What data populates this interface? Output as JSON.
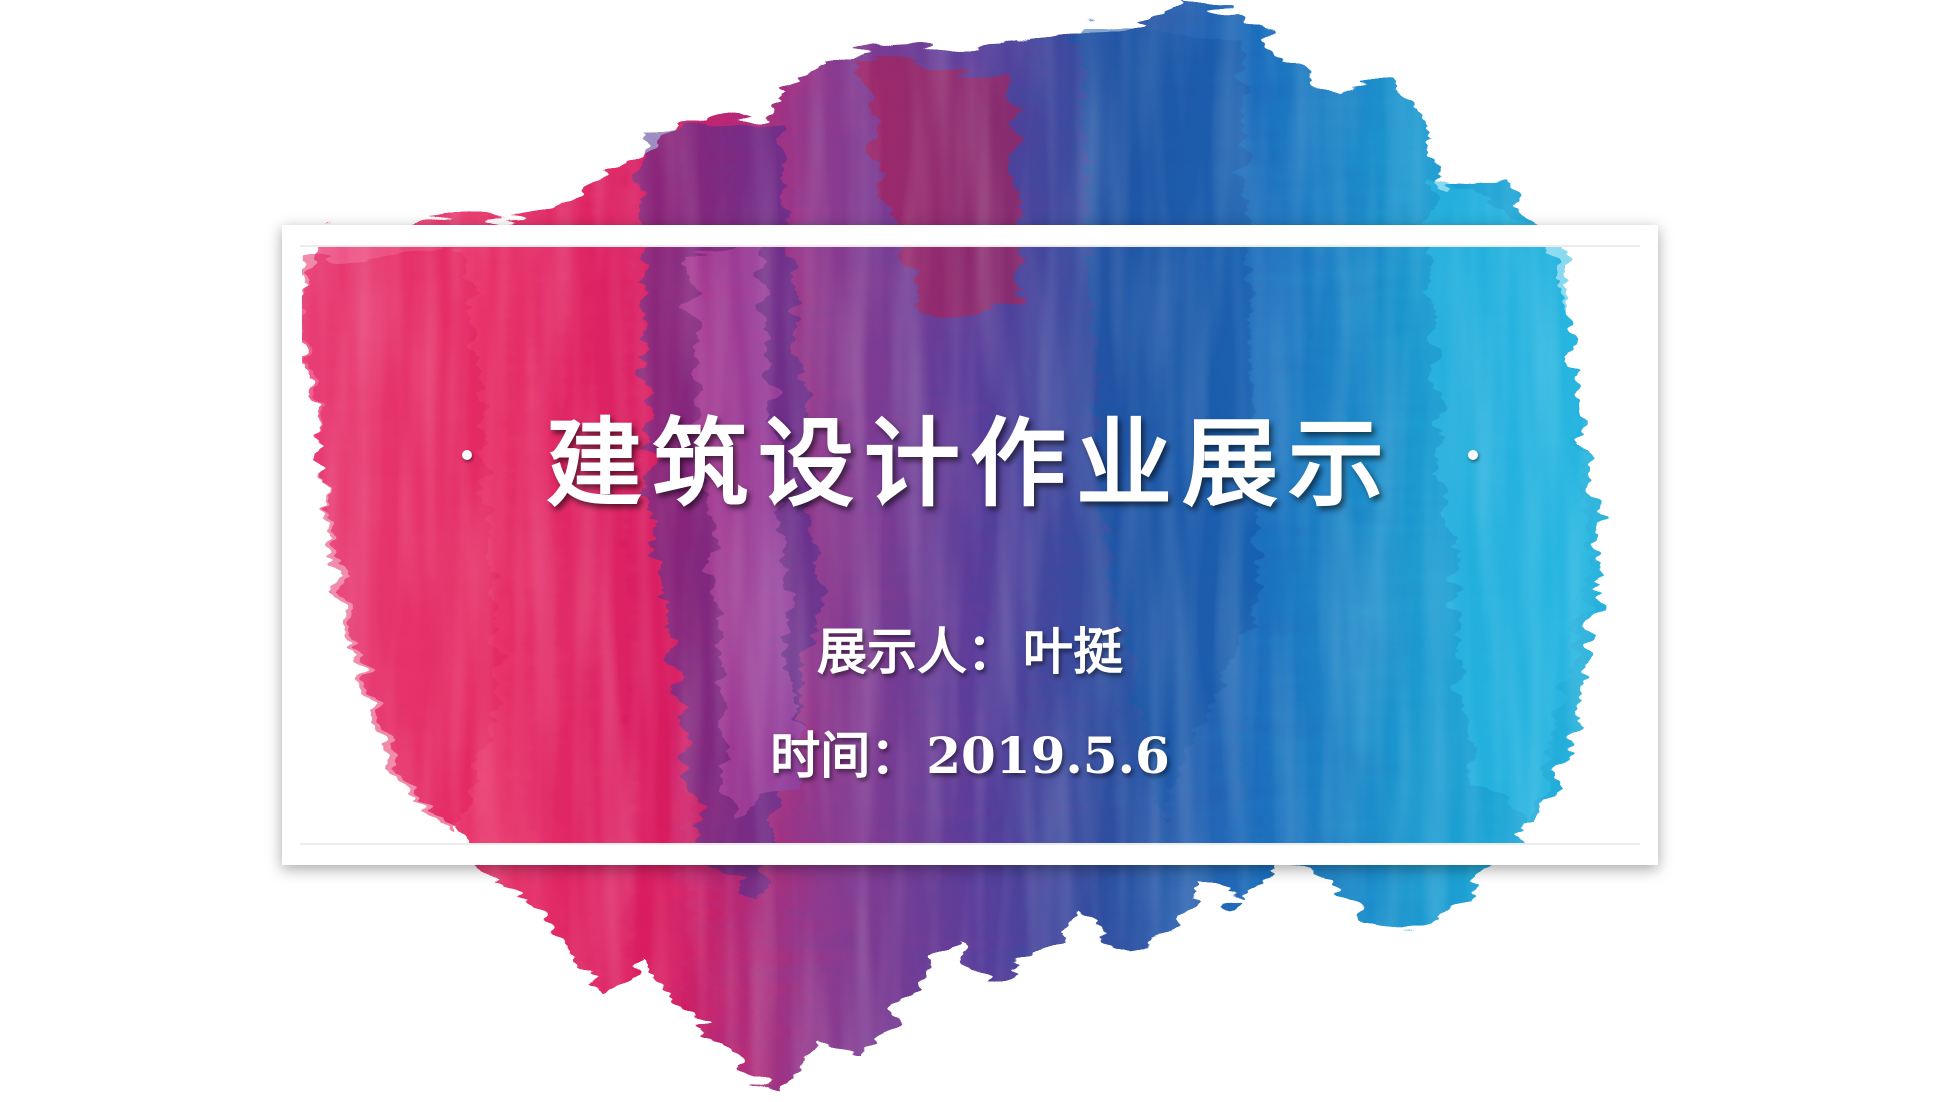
{
  "slide": {
    "title": "建筑设计作业展示",
    "presenter_label": "展示人：",
    "presenter_name": "叶挺",
    "date_label": "时间：",
    "date_value": "2019.5.6"
  },
  "colors": {
    "pink": "#e8336a",
    "magenta": "#c2185b",
    "purple": "#6a3d9a",
    "navy": "#2a4fa0",
    "blue": "#1e6fc0",
    "cyan": "#1aa7d6",
    "frame": "#ffffff"
  },
  "icons": [
    "dot-bullet-left",
    "dot-bullet-right"
  ]
}
